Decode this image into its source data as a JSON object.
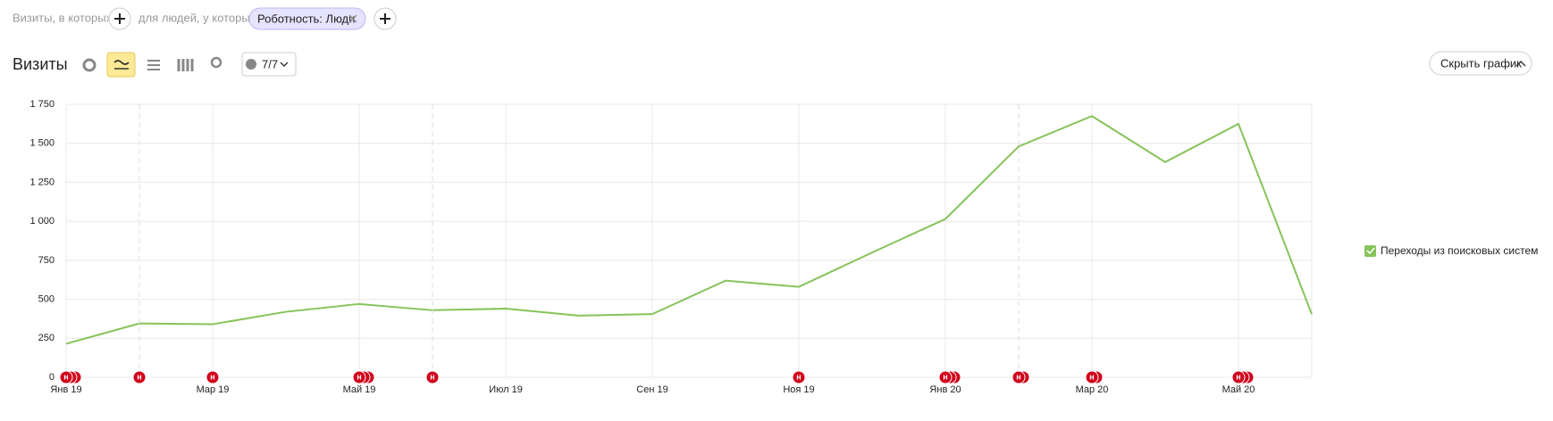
{
  "filters": {
    "visits_label": "Визиты, в которых",
    "people_label": "для людей, у которых",
    "chip": "Роботность: Люди"
  },
  "toolbar": {
    "title": "Визиты",
    "counter": "7/7",
    "hide_button": "Скрыть график"
  },
  "chart_data": {
    "type": "line",
    "categories": [
      "Янв 19",
      null,
      "Мар 19",
      null,
      "Май 19",
      null,
      "Июл 19",
      null,
      "Сен 19",
      null,
      "Ноя 19",
      null,
      "Янв 20",
      null,
      "Мар 20",
      null,
      "Май 20",
      null
    ],
    "series": [
      {
        "name": "Переходы из поисковых систем",
        "color": "#86c35a",
        "values": [
          215,
          345,
          340,
          420,
          470,
          430,
          440,
          395,
          405,
          620,
          580,
          800,
          1015,
          1480,
          1675,
          1380,
          1625,
          405
        ]
      }
    ],
    "ylim": [
      0,
      1750
    ],
    "yticks": [
      0,
      250,
      500,
      750,
      {
        "value": 1000,
        "label": "1 000"
      },
      {
        "value": 1250,
        "label": "1 250"
      },
      {
        "value": 1500,
        "label": "1 500"
      },
      {
        "value": 1750,
        "label": "1 750"
      }
    ],
    "grid": true,
    "legend": "right",
    "annotations": [
      {
        "x": 0,
        "count": 3,
        "text": "н"
      },
      {
        "x": 1,
        "count": 1,
        "text": "н"
      },
      {
        "x": 2,
        "count": 1,
        "text": "н"
      },
      {
        "x": 4,
        "count": 3,
        "text": "н"
      },
      {
        "x": 5,
        "count": 1,
        "text": "н"
      },
      {
        "x": 10,
        "count": 1,
        "text": "н"
      },
      {
        "x": 12,
        "count": 3,
        "text": "н"
      },
      {
        "x": 13,
        "count": 2,
        "text": "н"
      },
      {
        "x": 14,
        "count": 2,
        "text": "н"
      },
      {
        "x": 16,
        "count": 3,
        "text": "н"
      }
    ]
  }
}
